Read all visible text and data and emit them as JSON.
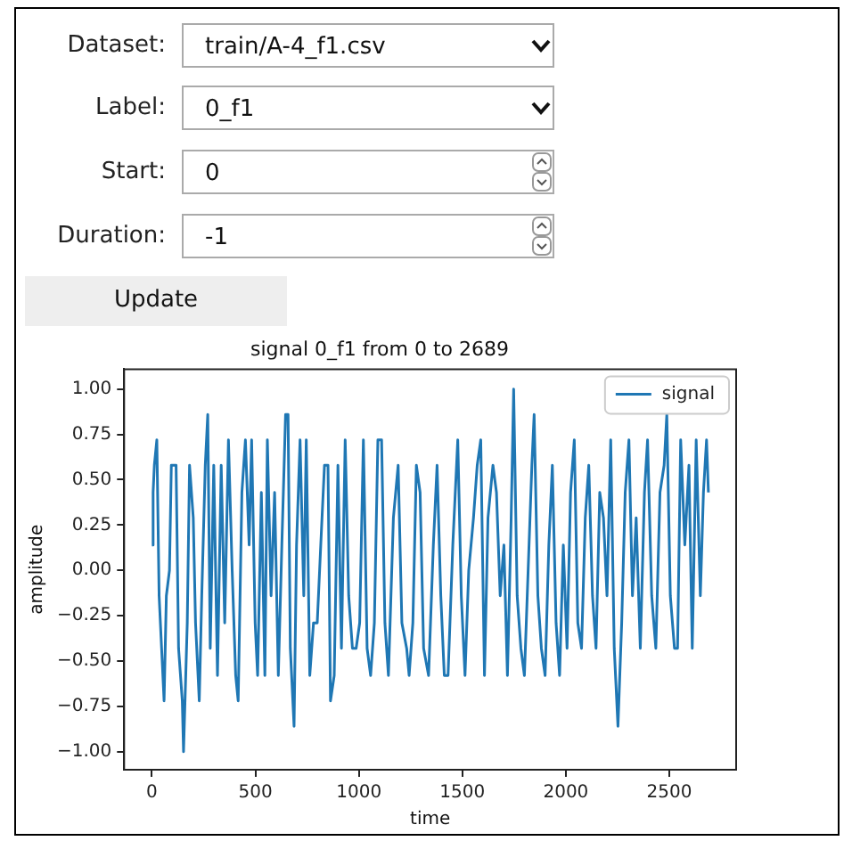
{
  "chart_data": {
    "type": "line",
    "title": "signal 0_f1 from 0 to 2689",
    "xlabel": "time",
    "ylabel": "amplitude",
    "annotations": [
      "Dataset:",
      "train/A-4_f1.csv",
      "Label:",
      "0_f1",
      "Start:",
      "0",
      "Duration:",
      "-1",
      "Update"
    ],
    "x": [
      0,
      6,
      12,
      24,
      35,
      47,
      59,
      70,
      85,
      94,
      117,
      129,
      147,
      153,
      171,
      182,
      200,
      211,
      229,
      241,
      258,
      270,
      282,
      299,
      317,
      335,
      352,
      370,
      388,
      405,
      417,
      435,
      452,
      470,
      482,
      499,
      511,
      529,
      546,
      558,
      576,
      593,
      611,
      628,
      646,
      658,
      669,
      687,
      699,
      716,
      734,
      746,
      763,
      781,
      799,
      816,
      834,
      851,
      863,
      881,
      899,
      916,
      934,
      951,
      969,
      987,
      1004,
      1022,
      1040,
      1057,
      1075,
      1092,
      1110,
      1126,
      1143,
      1167,
      1190,
      1208,
      1231,
      1243,
      1261,
      1278,
      1296,
      1313,
      1337,
      1360,
      1378,
      1396,
      1413,
      1431,
      1454,
      1478,
      1495,
      1513,
      1531,
      1554,
      1572,
      1589,
      1607,
      1624,
      1648,
      1665,
      1683,
      1701,
      1718,
      1736,
      1748,
      1765,
      1783,
      1800,
      1818,
      1836,
      1847,
      1865,
      1882,
      1900,
      1918,
      1935,
      1953,
      1970,
      1988,
      2006,
      2023,
      2041,
      2058,
      2076,
      2094,
      2111,
      2129,
      2146,
      2164,
      2182,
      2199,
      2217,
      2234,
      2252,
      2270,
      2287,
      2305,
      2322,
      2340,
      2360,
      2380,
      2395,
      2415,
      2435,
      2455,
      2475,
      2488,
      2505,
      2525,
      2540,
      2555,
      2575,
      2595,
      2611,
      2630,
      2650,
      2665,
      2680,
      2689
    ],
    "series": [
      {
        "name": "signal",
        "color": "#1f77b4",
        "values": [
          0.14,
          0.43,
          0.58,
          0.72,
          -0.14,
          -0.43,
          -0.72,
          -0.14,
          0.0,
          0.58,
          0.58,
          -0.43,
          -0.72,
          -1.0,
          -0.29,
          0.58,
          0.29,
          -0.29,
          -0.72,
          -0.14,
          0.58,
          0.86,
          -0.43,
          0.58,
          -0.58,
          0.58,
          -0.29,
          0.72,
          0.0,
          -0.58,
          -0.72,
          0.43,
          0.72,
          0.14,
          0.72,
          -0.29,
          -0.58,
          0.43,
          -0.58,
          0.72,
          -0.14,
          0.43,
          -0.58,
          0.14,
          0.86,
          0.86,
          -0.43,
          -0.86,
          0.14,
          0.72,
          -0.14,
          0.72,
          -0.58,
          -0.29,
          -0.29,
          0.14,
          0.58,
          0.58,
          -0.72,
          -0.58,
          0.58,
          -0.43,
          0.72,
          -0.14,
          -0.43,
          -0.43,
          -0.29,
          0.72,
          -0.43,
          -0.58,
          -0.29,
          0.72,
          0.72,
          -0.29,
          -0.58,
          0.29,
          0.58,
          -0.29,
          -0.43,
          -0.58,
          -0.29,
          0.58,
          0.43,
          -0.43,
          -0.58,
          0.14,
          0.58,
          -0.14,
          -0.58,
          -0.58,
          0.14,
          0.72,
          -0.14,
          -0.58,
          0.0,
          0.29,
          0.58,
          0.72,
          -0.58,
          0.29,
          0.58,
          0.43,
          -0.14,
          0.14,
          -0.58,
          0.29,
          1.0,
          -0.14,
          -0.43,
          -0.58,
          0.0,
          0.58,
          0.86,
          -0.14,
          -0.43,
          -0.58,
          0.14,
          0.58,
          -0.29,
          -0.58,
          0.14,
          -0.43,
          0.43,
          0.72,
          -0.29,
          -0.43,
          0.29,
          0.58,
          -0.14,
          -0.43,
          0.43,
          0.29,
          -0.14,
          0.72,
          -0.43,
          -0.86,
          -0.29,
          0.43,
          0.72,
          -0.14,
          0.29,
          -0.43,
          0.43,
          0.72,
          -0.14,
          -0.43,
          0.43,
          0.58,
          0.86,
          -0.14,
          -0.43,
          -0.43,
          0.72,
          0.14,
          0.58,
          -0.43,
          0.72,
          -0.14,
          0.43,
          0.72,
          0.43
        ]
      }
    ],
    "xlim": [
      -134,
      2823
    ],
    "xticks": [
      0,
      500,
      1000,
      1500,
      2000,
      2500
    ],
    "ylim": [
      -1.1,
      1.11
    ],
    "yticks": [
      {
        "value": -1,
        "label": "−1.00"
      },
      {
        "value": -0.75,
        "label": "−0.75"
      },
      {
        "value": -0.5,
        "label": "−0.50"
      },
      {
        "value": -0.25,
        "label": "−0.25"
      },
      {
        "value": 0,
        "label": "0.00"
      },
      {
        "value": 0.25,
        "label": "0.25"
      },
      {
        "value": 0.5,
        "label": "0.50"
      },
      {
        "value": 0.75,
        "label": "0.75"
      },
      {
        "value": 1,
        "label": "1.00"
      }
    ],
    "grid": false,
    "legend": "top right",
    "marker": "none",
    "line_style": "solid"
  }
}
